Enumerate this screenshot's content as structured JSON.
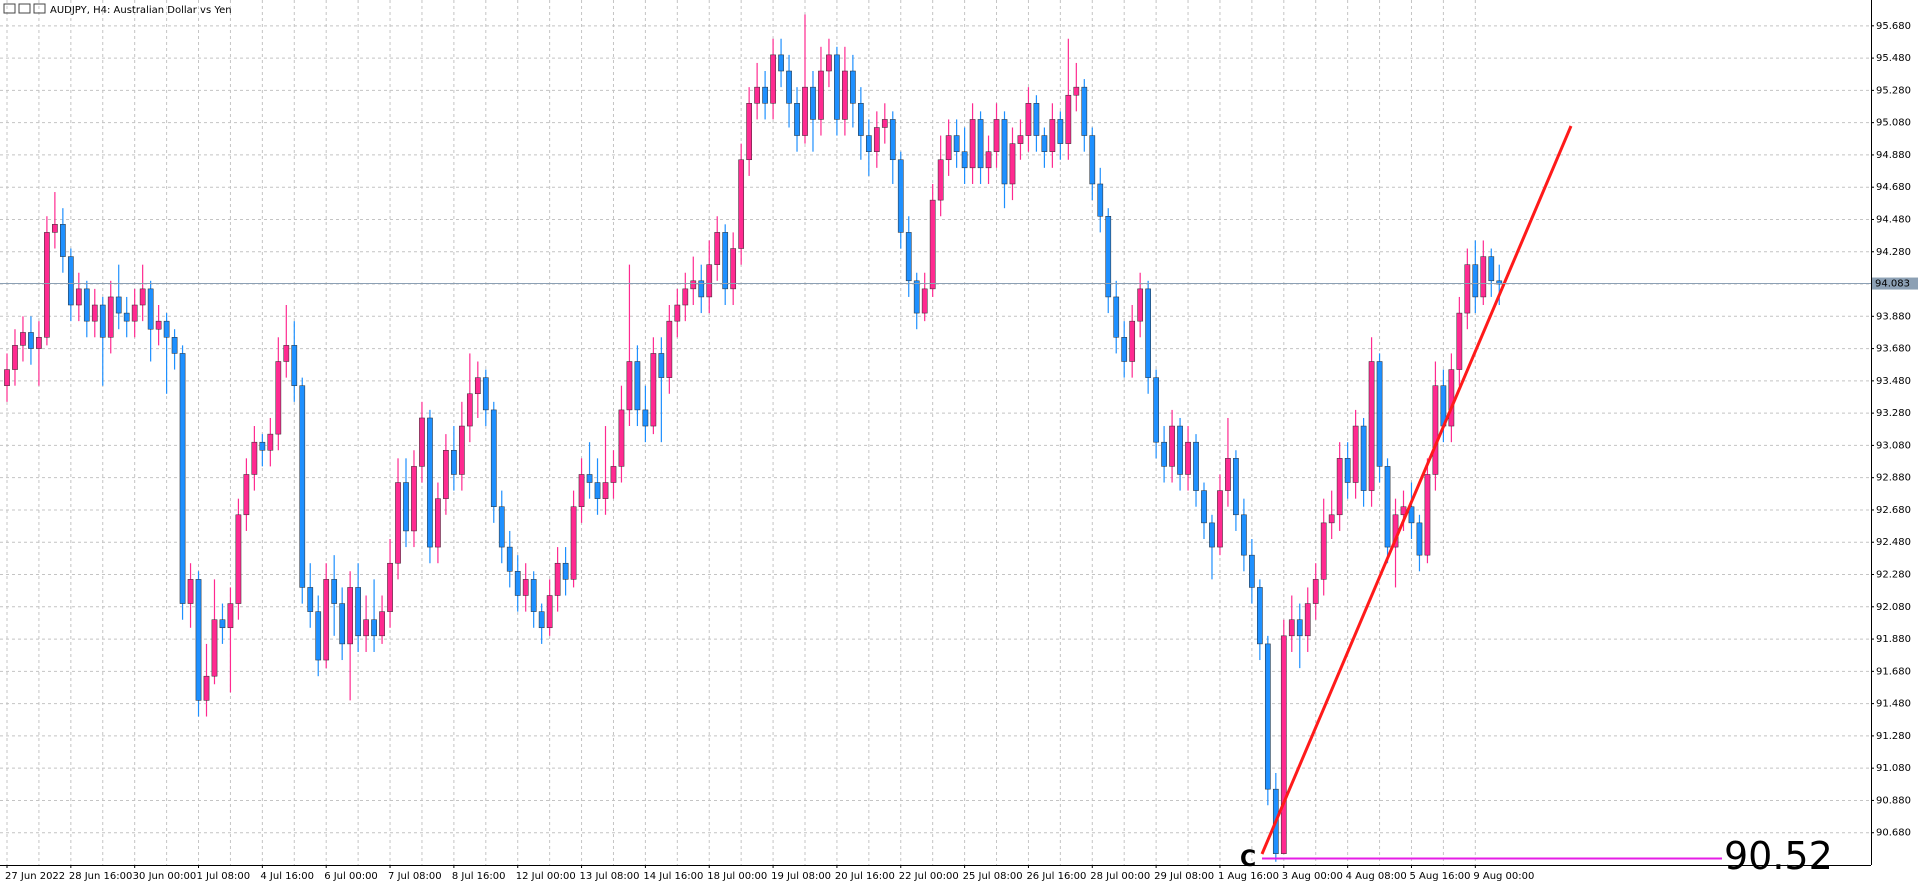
{
  "chart_data": {
    "type": "candlestick",
    "title": "AUDJPY, H4: Australian Dollar vs Yen",
    "up_color": "#ff2a90",
    "down_color": "#1e90ff",
    "categories": [
      "27 Jun 2022",
      null,
      null,
      null,
      null,
      null,
      null,
      null,
      "28 Jun 16:00",
      null,
      null,
      null,
      null,
      null,
      null,
      null,
      "30 Jun 00:00",
      null,
      null,
      null,
      null,
      null,
      null,
      null,
      "1 Jul 08:00",
      null,
      null,
      null,
      null,
      null,
      null,
      null,
      "4 Jul 16:00",
      null,
      null,
      null,
      null,
      null,
      null,
      null,
      "6 Jul 00:00",
      null,
      null,
      null,
      null,
      null,
      null,
      null,
      "7 Jul 08:00",
      null,
      null,
      null,
      null,
      null,
      null,
      null,
      "8 Jul 16:00",
      null,
      null,
      null,
      null,
      null,
      null,
      null,
      "12 Jul 00:00",
      null,
      null,
      null,
      null,
      null,
      null,
      null,
      "13 Jul 08:00",
      null,
      null,
      null,
      null,
      null,
      null,
      null,
      "14 Jul 16:00",
      null,
      null,
      null,
      null,
      null,
      null,
      null,
      "18 Jul 00:00",
      null,
      null,
      null,
      null,
      null,
      null,
      null,
      "19 Jul 08:00",
      null,
      null,
      null,
      null,
      null,
      null,
      null,
      "20 Jul 16:00",
      null,
      null,
      null,
      null,
      null,
      null,
      null,
      "22 Jul 00:00",
      null,
      null,
      null,
      null,
      null,
      null,
      null,
      "25 Jul 08:00",
      null,
      null,
      null,
      null,
      null,
      null,
      null,
      "26 Jul 16:00",
      null,
      null,
      null,
      null,
      null,
      null,
      null,
      "28 Jul 00:00",
      null,
      null,
      null,
      null,
      null,
      null,
      null,
      "29 Jul 08:00",
      null,
      null,
      null,
      null,
      null,
      null,
      null,
      "1 Aug 16:00",
      null,
      null,
      null,
      null,
      null,
      null,
      null,
      "3 Aug 00:00",
      null,
      null,
      null,
      null,
      null,
      null,
      null,
      "4 Aug 08:00",
      null,
      null,
      null,
      null,
      null,
      null,
      null,
      "5 Aug 16:00",
      null,
      null,
      null,
      null,
      null,
      null,
      null,
      "9 Aug 00:00",
      null,
      null,
      null
    ],
    "open": [
      93.45,
      93.55,
      93.7,
      93.78,
      93.68,
      93.75,
      94.4,
      94.45,
      94.25,
      93.95,
      94.05,
      93.85,
      93.95,
      93.75,
      94.0,
      93.9,
      93.85,
      93.95,
      94.05,
      93.8,
      93.85,
      93.75,
      93.65,
      92.1,
      92.25,
      91.5,
      91.65,
      92.0,
      91.95,
      92.1,
      92.65,
      92.9,
      93.1,
      93.05,
      93.15,
      93.6,
      93.7,
      93.45,
      92.2,
      92.05,
      91.75,
      92.25,
      92.1,
      91.85,
      92.2,
      91.9,
      92.0,
      91.9,
      92.05,
      92.35,
      92.85,
      92.55,
      92.95,
      93.25,
      92.45,
      92.75,
      93.05,
      92.9,
      93.2,
      93.4,
      93.5,
      93.3,
      92.7,
      92.45,
      92.3,
      92.15,
      92.25,
      92.05,
      91.95,
      92.15,
      92.35,
      92.25,
      92.7,
      92.9,
      92.85,
      92.75,
      92.85,
      92.95,
      93.3,
      93.6,
      93.3,
      93.2,
      93.65,
      93.5,
      93.85,
      93.95,
      94.05,
      94.1,
      94.0,
      94.2,
      94.4,
      94.05,
      94.3,
      94.85,
      95.2,
      95.3,
      95.2,
      95.5,
      95.4,
      95.2,
      95.0,
      95.3,
      95.1,
      95.4,
      95.5,
      95.1,
      95.4,
      95.2,
      95.0,
      94.9,
      95.05,
      95.1,
      94.85,
      94.4,
      94.1,
      93.9,
      94.05,
      94.6,
      94.85,
      95.0,
      94.9,
      94.8,
      95.1,
      94.8,
      94.9,
      95.1,
      94.7,
      94.95,
      95.0,
      95.2,
      95.0,
      94.9,
      95.1,
      94.95,
      95.25,
      95.3,
      95.0,
      94.7,
      94.5,
      94.0,
      93.75,
      93.6,
      93.85,
      94.05,
      93.5,
      93.1,
      92.95,
      93.2,
      92.9,
      93.1,
      92.8,
      92.6,
      92.45,
      92.8,
      93.0,
      92.65,
      92.4,
      92.2,
      91.85,
      90.95,
      90.55,
      91.9,
      92.0,
      91.9,
      92.1,
      92.25,
      92.6,
      92.65,
      93.0,
      92.85,
      93.2,
      92.8,
      93.6,
      92.95,
      92.45,
      92.65,
      92.7,
      92.6,
      92.4,
      92.9,
      93.45,
      93.2,
      93.55,
      93.9,
      94.2,
      94.0,
      94.25,
      94.1
    ],
    "high": [
      93.65,
      93.8,
      93.88,
      93.88,
      93.85,
      94.5,
      94.65,
      94.55,
      94.3,
      94.15,
      94.1,
      94.05,
      94.0,
      94.1,
      94.2,
      94.0,
      94.05,
      94.2,
      94.1,
      93.95,
      93.9,
      93.8,
      93.7,
      92.35,
      92.3,
      91.85,
      92.25,
      92.1,
      92.2,
      92.75,
      93.0,
      93.2,
      93.15,
      93.25,
      93.75,
      93.95,
      93.85,
      93.5,
      92.35,
      92.15,
      92.35,
      92.4,
      92.2,
      92.3,
      92.35,
      92.15,
      92.25,
      92.15,
      92.5,
      93.0,
      93.0,
      93.05,
      93.35,
      93.3,
      92.85,
      93.15,
      93.2,
      93.35,
      93.65,
      93.6,
      93.55,
      93.35,
      92.8,
      92.55,
      92.4,
      92.35,
      92.3,
      92.1,
      92.25,
      92.45,
      92.45,
      92.8,
      93.0,
      93.1,
      93.0,
      93.2,
      93.05,
      93.45,
      94.2,
      93.7,
      93.45,
      93.75,
      93.75,
      93.95,
      94.05,
      94.15,
      94.25,
      94.2,
      94.35,
      94.5,
      94.45,
      94.4,
      94.95,
      95.3,
      95.45,
      95.4,
      95.6,
      95.6,
      95.5,
      95.3,
      95.75,
      95.4,
      95.55,
      95.6,
      95.55,
      95.55,
      95.5,
      95.3,
      95.1,
      95.15,
      95.2,
      95.15,
      94.9,
      94.5,
      94.15,
      94.15,
      94.7,
      95.0,
      95.1,
      95.1,
      95.05,
      95.2,
      95.15,
      95.0,
      95.2,
      95.15,
      95.05,
      95.1,
      95.3,
      95.25,
      95.05,
      95.2,
      95.15,
      95.6,
      95.45,
      95.35,
      95.05,
      94.8,
      94.55,
      94.1,
      93.85,
      93.95,
      94.15,
      94.1,
      93.55,
      93.2,
      93.3,
      93.25,
      93.2,
      93.15,
      92.85,
      92.65,
      92.9,
      93.25,
      93.05,
      92.75,
      92.5,
      92.25,
      91.9,
      91.05,
      92.0,
      92.15,
      92.1,
      92.2,
      92.35,
      92.75,
      92.8,
      93.1,
      93.1,
      93.3,
      93.25,
      93.75,
      93.65,
      93.0,
      92.75,
      92.8,
      92.85,
      92.65,
      93.0,
      93.6,
      93.55,
      93.65,
      94.0,
      94.3,
      94.35,
      94.35,
      94.3,
      94.2
    ],
    "low": [
      93.35,
      93.45,
      93.6,
      93.58,
      93.45,
      93.7,
      94.3,
      94.15,
      93.85,
      93.85,
      93.75,
      93.75,
      93.45,
      93.65,
      93.8,
      93.75,
      93.75,
      93.85,
      93.6,
      93.7,
      93.4,
      93.55,
      92.0,
      91.95,
      91.4,
      91.4,
      91.6,
      91.85,
      91.55,
      92.0,
      92.55,
      92.8,
      92.95,
      92.95,
      93.05,
      93.5,
      93.35,
      92.1,
      91.95,
      91.65,
      91.7,
      91.9,
      91.75,
      91.5,
      91.8,
      91.8,
      91.8,
      91.85,
      91.95,
      92.25,
      92.45,
      92.45,
      92.85,
      92.35,
      92.35,
      92.65,
      92.8,
      92.8,
      93.1,
      93.25,
      93.2,
      92.6,
      92.35,
      92.2,
      92.05,
      92.05,
      91.95,
      91.85,
      91.9,
      92.05,
      92.15,
      92.2,
      92.6,
      92.75,
      92.65,
      92.65,
      92.75,
      92.85,
      93.2,
      93.2,
      93.1,
      93.15,
      93.1,
      93.4,
      93.75,
      93.85,
      93.95,
      93.9,
      93.9,
      94.1,
      93.95,
      93.95,
      94.2,
      94.75,
      95.1,
      95.1,
      95.1,
      95.3,
      95.05,
      94.9,
      94.95,
      94.9,
      95.0,
      95.3,
      95.0,
      95.0,
      95.05,
      94.85,
      94.75,
      94.8,
      94.95,
      94.7,
      94.3,
      94.0,
      93.8,
      93.85,
      94.0,
      94.5,
      94.75,
      94.8,
      94.7,
      94.7,
      94.7,
      94.7,
      94.8,
      94.55,
      94.6,
      94.85,
      94.9,
      94.9,
      94.8,
      94.8,
      94.85,
      94.85,
      95.15,
      94.9,
      94.6,
      94.4,
      93.9,
      93.65,
      93.5,
      93.5,
      93.75,
      93.4,
      93.0,
      92.85,
      92.85,
      92.8,
      92.8,
      92.7,
      92.5,
      92.25,
      92.4,
      92.7,
      92.55,
      92.3,
      92.1,
      91.75,
      90.85,
      90.5,
      90.55,
      91.8,
      91.7,
      91.8,
      92.0,
      92.15,
      92.5,
      92.55,
      92.75,
      92.75,
      92.7,
      92.7,
      92.85,
      92.35,
      92.2,
      92.55,
      92.5,
      92.3,
      92.35,
      92.8,
      93.1,
      93.1,
      93.45,
      93.8,
      93.9,
      93.95,
      94.0,
      93.95
    ],
    "close": [
      93.55,
      93.7,
      93.78,
      93.68,
      93.75,
      94.4,
      94.45,
      94.25,
      93.95,
      94.05,
      93.85,
      93.95,
      93.75,
      94.0,
      93.9,
      93.85,
      93.95,
      94.05,
      93.8,
      93.85,
      93.75,
      93.65,
      92.1,
      92.25,
      91.5,
      91.65,
      92.0,
      91.95,
      92.1,
      92.65,
      92.9,
      93.1,
      93.05,
      93.15,
      93.6,
      93.7,
      93.45,
      92.2,
      92.05,
      91.75,
      92.25,
      92.1,
      91.85,
      92.2,
      91.9,
      92.0,
      91.9,
      92.05,
      92.35,
      92.85,
      92.55,
      92.95,
      93.25,
      92.45,
      92.75,
      93.05,
      92.9,
      93.2,
      93.4,
      93.5,
      93.3,
      92.7,
      92.45,
      92.3,
      92.15,
      92.25,
      92.05,
      91.95,
      92.15,
      92.35,
      92.25,
      92.7,
      92.9,
      92.85,
      92.75,
      92.85,
      92.95,
      93.3,
      93.6,
      93.3,
      93.2,
      93.65,
      93.5,
      93.85,
      93.95,
      94.05,
      94.1,
      94.0,
      94.2,
      94.4,
      94.05,
      94.3,
      94.85,
      95.2,
      95.3,
      95.2,
      95.5,
      95.4,
      95.2,
      95.0,
      95.3,
      95.1,
      95.4,
      95.5,
      95.1,
      95.4,
      95.2,
      95.0,
      94.9,
      95.05,
      95.1,
      94.85,
      94.4,
      94.1,
      93.9,
      94.05,
      94.6,
      94.85,
      95.0,
      94.9,
      94.8,
      95.1,
      94.8,
      94.9,
      95.1,
      94.7,
      94.95,
      95.0,
      95.2,
      95.0,
      94.9,
      95.1,
      94.95,
      95.25,
      95.3,
      95.0,
      94.7,
      94.5,
      94.0,
      93.75,
      93.6,
      93.85,
      94.05,
      93.5,
      93.1,
      92.95,
      93.2,
      92.9,
      93.1,
      92.8,
      92.6,
      92.45,
      92.8,
      93.0,
      92.65,
      92.4,
      92.2,
      91.85,
      90.95,
      90.55,
      91.9,
      92.0,
      91.9,
      92.1,
      92.25,
      92.6,
      92.65,
      93.0,
      92.85,
      93.2,
      92.8,
      93.6,
      92.95,
      92.45,
      92.65,
      92.7,
      92.6,
      92.4,
      92.9,
      93.45,
      93.2,
      93.55,
      93.9,
      94.2,
      94.0,
      94.25,
      94.1,
      94.08
    ],
    "ylim": [
      90.48,
      95.84
    ],
    "yticks": [
      {
        "value": 90.68,
        "label": "90.680"
      },
      {
        "value": 90.88,
        "label": "90.880"
      },
      {
        "value": 91.08,
        "label": "91.080"
      },
      {
        "value": 91.28,
        "label": "91.280"
      },
      {
        "value": 91.48,
        "label": "91.480"
      },
      {
        "value": 91.68,
        "label": "91.680"
      },
      {
        "value": 91.88,
        "label": "91.880"
      },
      {
        "value": 92.08,
        "label": "92.080"
      },
      {
        "value": 92.28,
        "label": "92.280"
      },
      {
        "value": 92.48,
        "label": "92.480"
      },
      {
        "value": 92.68,
        "label": "92.680"
      },
      {
        "value": 92.88,
        "label": "92.880"
      },
      {
        "value": 93.08,
        "label": "93.080"
      },
      {
        "value": 93.28,
        "label": "93.280"
      },
      {
        "value": 93.48,
        "label": "93.480"
      },
      {
        "value": 93.68,
        "label": "93.680"
      },
      {
        "value": 93.88,
        "label": "93.880"
      },
      {
        "value": 94.08,
        "label": "94.080"
      },
      {
        "value": 94.28,
        "label": "94.280"
      },
      {
        "value": 94.48,
        "label": "94.480"
      },
      {
        "value": 94.68,
        "label": "94.680"
      },
      {
        "value": 94.88,
        "label": "94.880"
      },
      {
        "value": 95.08,
        "label": "95.080"
      },
      {
        "value": 95.28,
        "label": "95.280"
      },
      {
        "value": 95.48,
        "label": "95.480"
      },
      {
        "value": 95.68,
        "label": "95.680"
      }
    ],
    "grid": true,
    "current_price": 94.083,
    "level": 90.52,
    "level_color": "#e61ee6",
    "annotation": "C"
  }
}
